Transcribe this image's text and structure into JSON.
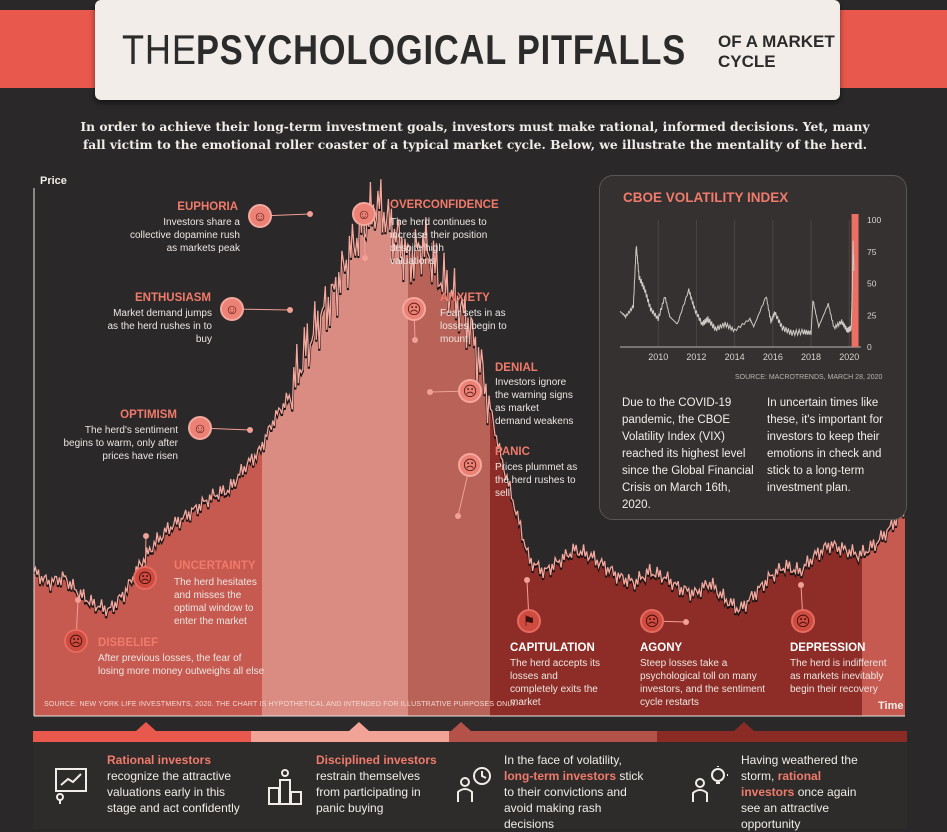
{
  "header": {
    "title_light": "THE",
    "title_bold": "PSYCHOLOGICAL PITFALLS",
    "title_small": "OF A MARKET CYCLE",
    "intro": "In order to achieve their long-term investment goals, investors must make rational, informed decisions. Yet, many fall victim to the emotional roller coaster of a typical market cycle. Below, we illustrate the mentality of the herd."
  },
  "colors": {
    "background": "#2a2828",
    "accent": "#e9584c",
    "phase_light": "#d97c70",
    "phase_mid": "#b05048",
    "phase_dark": "#8e2d27"
  },
  "chart_data": {
    "type": "area",
    "xlabel": "Time",
    "ylabel": "Price",
    "source": "SOURCE: NEW YORK LIFE INVESTMENTS, 2020. THE CHART IS HYPOTHETICAL AND INTENDED FOR ILLUSTRATIVE PURPOSES ONLY.",
    "series": [
      {
        "values": [
          28,
          26,
          27,
          24,
          22,
          21,
          24,
          29,
          33,
          36,
          38,
          40,
          42,
          43,
          47,
          50,
          56,
          60,
          68,
          74,
          79,
          86,
          92,
          95,
          90,
          85,
          88,
          82,
          78,
          73,
          63,
          50,
          40,
          30,
          28,
          30,
          32,
          31,
          29,
          27,
          26,
          28,
          27,
          25,
          24,
          26,
          23,
          21,
          24,
          27,
          29,
          28,
          31,
          33,
          32,
          31,
          33,
          36,
          40
        ]
      }
    ],
    "phases": [
      {
        "name": "DISBELIEF",
        "desc": "After previous losses, the fear of losing more money outweighs all else",
        "icon": "disbelief-face-icon"
      },
      {
        "name": "UNCERTAINTY",
        "desc": "The herd hesitates and misses the optimal window to enter the market",
        "icon": "worried-face-icon"
      },
      {
        "name": "OPTIMISM",
        "desc": "The herd's sentiment begins to warm, only after prices have risen",
        "icon": "smile-face-icon"
      },
      {
        "name": "ENTHUSIASM",
        "desc": "Market demand jumps as the herd rushes in to buy",
        "icon": "grin-face-icon"
      },
      {
        "name": "EUPHORIA",
        "desc": "Investors share a collective dopamine rush as markets peak",
        "icon": "starstruck-face-icon"
      },
      {
        "name": "OVERCONFIDENCE",
        "desc": "The herd continues to increase their position despite high valuations",
        "icon": "sunglasses-face-icon"
      },
      {
        "name": "ANXIETY",
        "desc": "Fear sets in as losses begin to mount",
        "icon": "anxious-face-icon"
      },
      {
        "name": "DENIAL",
        "desc": "Investors ignore the warning signs as market demand weakens",
        "icon": "frown-face-icon"
      },
      {
        "name": "PANIC",
        "desc": "Prices plummet as the herd rushes to sell",
        "icon": "scared-face-icon"
      },
      {
        "name": "CAPITULATION",
        "desc": "The herd accepts its losses and completely exits the market",
        "icon": "white-flag-icon"
      },
      {
        "name": "AGONY",
        "desc": "Steep losses take a psychological toll on many investors, and the sentiment cycle restarts",
        "icon": "dizzy-face-icon"
      },
      {
        "name": "DEPRESSION",
        "desc": "The herd is indifferent as markets inevitably begin their recovery",
        "icon": "sad-face-icon"
      }
    ]
  },
  "vix": {
    "title": "CBOE VOLATILITY INDEX",
    "source": "SOURCE: MACROTRENDS, MARCH 28, 2020",
    "x_ticks": [
      "2010",
      "2012",
      "2014",
      "2016",
      "2018",
      "2020"
    ],
    "y_ticks": [
      "0",
      "25",
      "50",
      "75",
      "100"
    ],
    "ylim": [
      0,
      100
    ],
    "xlim": [
      2008,
      2020.3
    ],
    "points": [
      [
        2008,
        28
      ],
      [
        2008.3,
        24
      ],
      [
        2008.7,
        32
      ],
      [
        2008.85,
        80
      ],
      [
        2009,
        55
      ],
      [
        2009.3,
        45
      ],
      [
        2009.6,
        30
      ],
      [
        2010,
        22
      ],
      [
        2010.35,
        40
      ],
      [
        2010.6,
        24
      ],
      [
        2011,
        18
      ],
      [
        2011.6,
        45
      ],
      [
        2011.9,
        30
      ],
      [
        2012.3,
        18
      ],
      [
        2012.6,
        22
      ],
      [
        2013,
        14
      ],
      [
        2013.5,
        18
      ],
      [
        2014,
        13
      ],
      [
        2014.8,
        22
      ],
      [
        2015,
        16
      ],
      [
        2015.65,
        40
      ],
      [
        2015.9,
        20
      ],
      [
        2016.1,
        27
      ],
      [
        2016.5,
        15
      ],
      [
        2017,
        11
      ],
      [
        2017.6,
        12
      ],
      [
        2018,
        11
      ],
      [
        2018.1,
        37
      ],
      [
        2018.4,
        16
      ],
      [
        2018.9,
        34
      ],
      [
        2019.2,
        15
      ],
      [
        2019.6,
        20
      ],
      [
        2019.9,
        13
      ],
      [
        2020.1,
        15
      ],
      [
        2020.15,
        40
      ],
      [
        2020.2,
        82
      ],
      [
        2020.25,
        60
      ]
    ],
    "text_left": "Due to the COVID-19 pandemic, the CBOE Volatility Index (VIX) reached its highest level since the Global Financial Crisis on March 16th, 2020.",
    "text_right": "In uncertain times like these, it's important for investors to keep their emotions in check and stick to a long-term investment plan."
  },
  "bottom": {
    "cards": [
      {
        "lead": "",
        "highlight": "Rational investors",
        "rest": "recognize the attractive valuations early in this stage and act confidently",
        "icon": "rising-chart-presentation-icon"
      },
      {
        "lead": "",
        "highlight": "Disciplined investors",
        "rest": "restrain themselves from participating in panic buying",
        "icon": "podium-person-icon"
      },
      {
        "lead": "In the face of volatility,",
        "highlight": "long-term investors",
        "rest": "stick to their convictions and avoid making rash decisions",
        "icon": "clock-person-icon"
      },
      {
        "lead": "Having weathered the storm,",
        "highlight": "rational investors",
        "rest": "once again see an attractive opportunity",
        "icon": "lightbulb-person-icon"
      }
    ]
  }
}
